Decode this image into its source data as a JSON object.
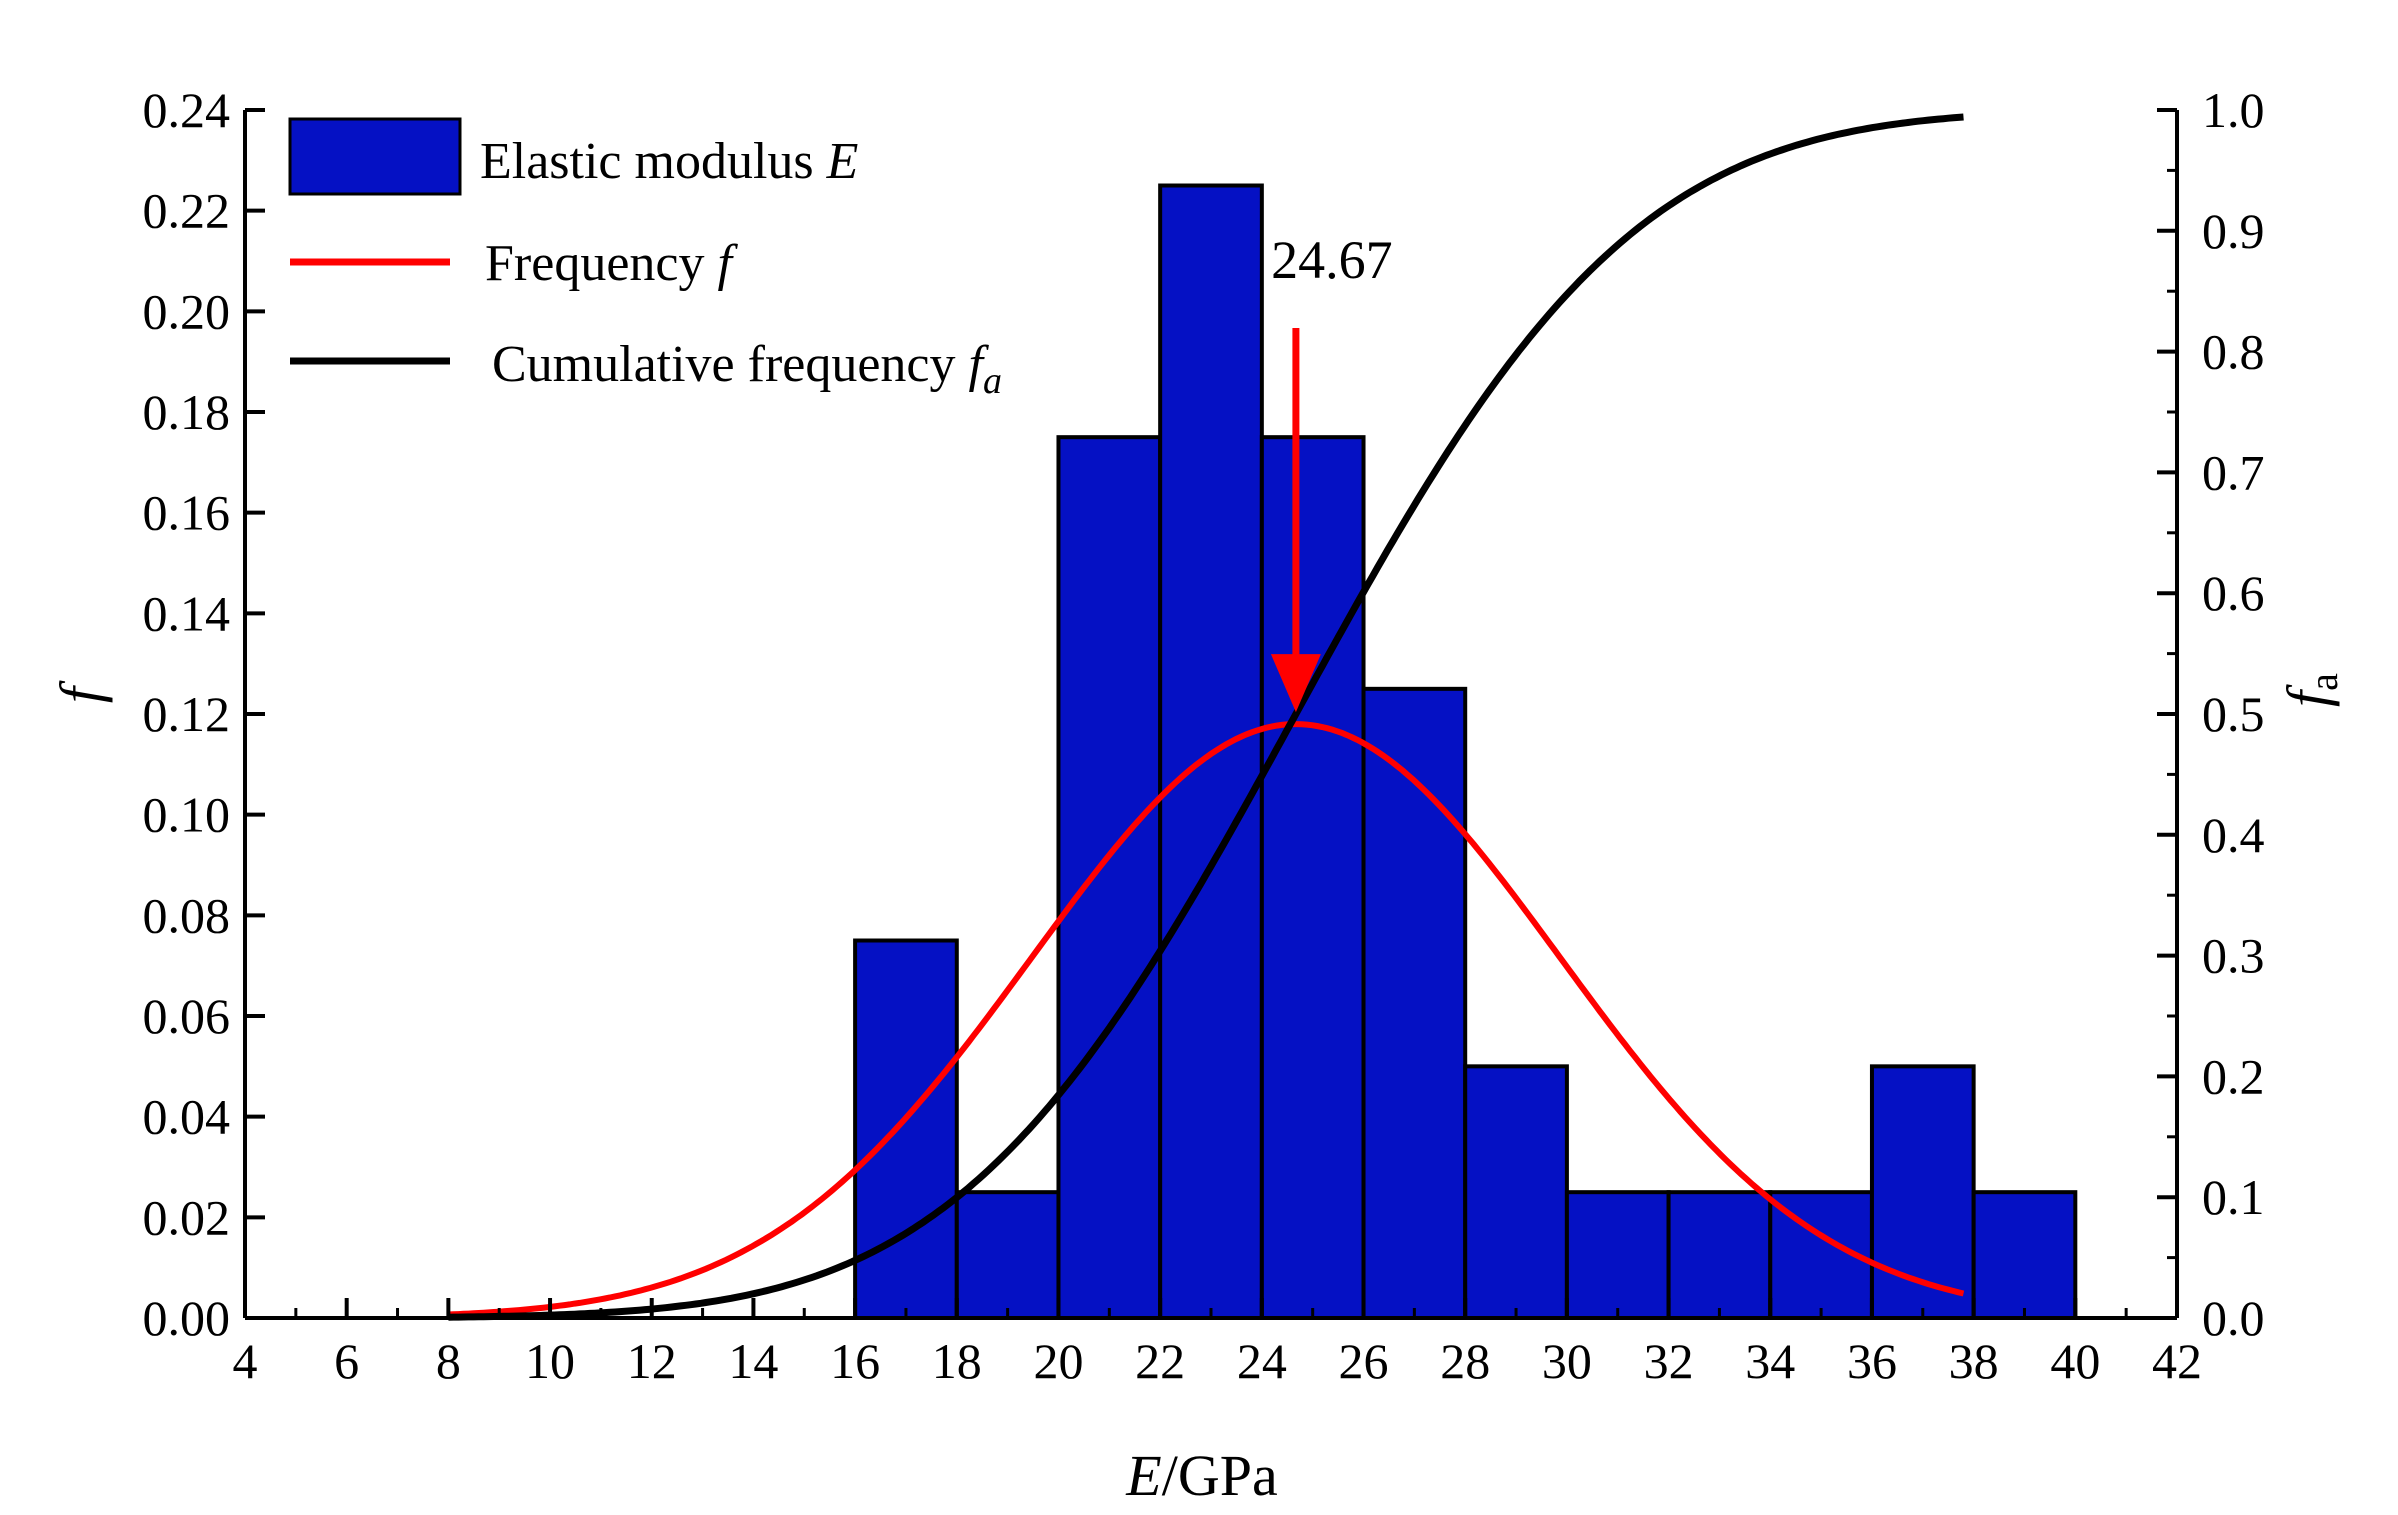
{
  "chart_data": {
    "type": "bar",
    "title": "",
    "xlabel": {
      "var": "E",
      "unit": "/GPa"
    },
    "ylabel_left": "f",
    "ylabel_right": {
      "base": "f",
      "sub": "a"
    },
    "xlim": [
      4,
      42
    ],
    "ylim_left": [
      0,
      0.24
    ],
    "ylim_right": [
      0,
      1.0
    ],
    "x_ticks": [
      "4",
      "6",
      "8",
      "10",
      "12",
      "14",
      "16",
      "18",
      "20",
      "22",
      "24",
      "26",
      "28",
      "30",
      "32",
      "34",
      "36",
      "38",
      "40",
      "42"
    ],
    "y_left_ticks": [
      "0.00",
      "0.02",
      "0.04",
      "0.06",
      "0.08",
      "0.10",
      "0.12",
      "0.14",
      "0.16",
      "0.18",
      "0.20",
      "0.22",
      "0.24"
    ],
    "y_right_ticks": [
      "0.0",
      "0.1",
      "0.2",
      "0.3",
      "0.4",
      "0.5",
      "0.6",
      "0.7",
      "0.8",
      "0.9",
      "1.0"
    ],
    "histogram": {
      "name": "Elastic modulus E",
      "color": "#0511c4",
      "bin_width": 2,
      "bin_starts": [
        16,
        18,
        20,
        22,
        24,
        26,
        28,
        30,
        32,
        34,
        36,
        38
      ],
      "values": [
        0.075,
        0.025,
        0.175,
        0.225,
        0.175,
        0.125,
        0.05,
        0.025,
        0.025,
        0.025,
        0.05,
        0.025
      ]
    },
    "frequency_curve": {
      "name": "Frequency f",
      "color": "#ff0000",
      "type": "normal",
      "mean": 24.67,
      "peak": 0.118,
      "sigma": 5.2,
      "x_range": [
        8,
        37.8
      ]
    },
    "cumulative_curve": {
      "name": "Cumulative frequency f_a",
      "color": "#000000",
      "axis": "right",
      "x_range": [
        8,
        37.8
      ]
    },
    "annotation": {
      "text": "24.67",
      "x": 24.67,
      "color": "#ff0000"
    },
    "legend": {
      "position": "top-left",
      "entries": [
        {
          "text": "Elastic modulus ",
          "italic": "E",
          "kind": "box"
        },
        {
          "text": "Frequency ",
          "italic": "f",
          "kind": "line",
          "color": "#ff0000"
        },
        {
          "text": "Cumulative frequency ",
          "italic": "f",
          "sub": "a",
          "kind": "line",
          "color": "#000000"
        }
      ]
    }
  }
}
